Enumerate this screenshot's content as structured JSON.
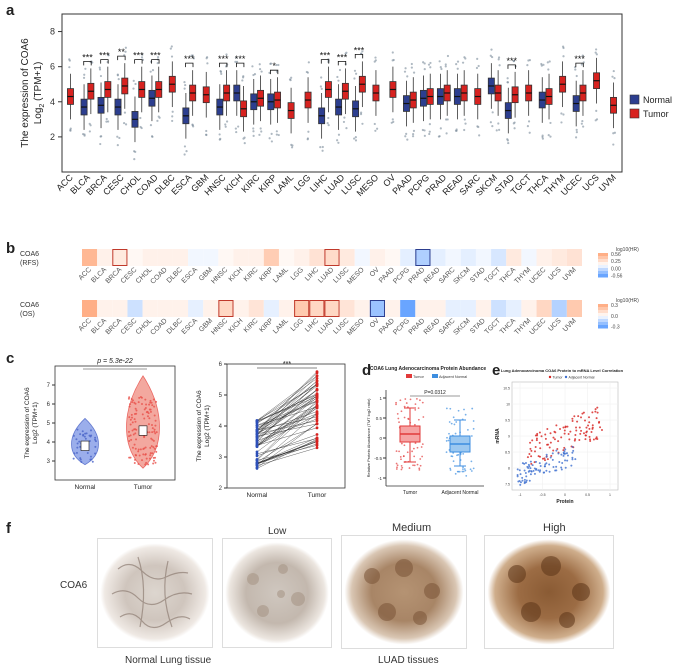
{
  "panels": {
    "a": "a",
    "b": "b",
    "c": "c",
    "d": "d",
    "e": "e",
    "f": "f"
  },
  "chart_data": [
    {
      "id": "a",
      "type": "boxplot",
      "ylabel_line1": "The expression of COA6",
      "ylabel_line2": "Log",
      "ylabel_sub": "2",
      "ylabel_line3": " (TPM+1)",
      "ylim": [
        0,
        9
      ],
      "yticks": [
        2,
        4,
        6,
        8
      ],
      "categories": [
        "ACC",
        "BLCA",
        "BRCA",
        "CESC",
        "CHOL",
        "COAD",
        "DLBC",
        "ESCA",
        "GBM",
        "HNSC",
        "KICH",
        "KIRC",
        "KIRP",
        "LAML",
        "LGG",
        "LIHC",
        "LUAD",
        "LUSC",
        "MESO",
        "OV",
        "PAAD",
        "PCPG",
        "PRAD",
        "READ",
        "SARC",
        "SKCM",
        "STAD",
        "TGCT",
        "THCA",
        "THYM",
        "UCEC",
        "UCS",
        "UVM"
      ],
      "legend": [
        {
          "name": "Normal",
          "color": "#2c3e8f"
        },
        {
          "name": "Tumor",
          "color": "#d7221f"
        }
      ],
      "normal_median": [
        null,
        3.7,
        3.8,
        3.7,
        3.0,
        4.2,
        null,
        3.2,
        null,
        3.7,
        4.5,
        4.0,
        4.0,
        null,
        null,
        3.2,
        3.7,
        3.6,
        null,
        null,
        3.9,
        4.2,
        4.3,
        4.3,
        null,
        4.9,
        3.5,
        null,
        4.1,
        null,
        3.9,
        null,
        null
      ],
      "tumor_median": [
        4.3,
        4.6,
        4.7,
        4.9,
        4.7,
        4.7,
        5.0,
        4.5,
        4.4,
        4.5,
        3.6,
        4.2,
        4.1,
        3.5,
        4.1,
        4.7,
        4.6,
        5.0,
        4.5,
        4.7,
        4.1,
        4.3,
        4.5,
        4.5,
        4.3,
        4.5,
        4.4,
        4.5,
        4.3,
        5.0,
        4.5,
        5.2,
        3.8
      ],
      "significance": [
        "",
        "***",
        "***",
        "**",
        "***",
        "***",
        "",
        "***",
        "",
        "***",
        "***",
        "",
        "*",
        "",
        "",
        "***",
        "***",
        "***",
        "",
        "",
        "",
        "",
        "",
        "",
        "",
        "",
        "***",
        "",
        "",
        "",
        "***",
        "",
        ""
      ]
    },
    {
      "id": "b",
      "type": "heatmap",
      "rows": [
        {
          "label_line1": "COA6",
          "label_line2": "(RFS)",
          "legend_title": "log10(HR)",
          "legend_ticks": [
            "0.56",
            "0.25",
            "0.00",
            "-0.56"
          ],
          "categories": [
            "ACC",
            "BLCA",
            "BRCA",
            "CESC",
            "CHOL",
            "COAD",
            "DLBC",
            "ESCA",
            "GBM",
            "HNSC",
            "KICH",
            "KIRC",
            "KIRP",
            "LAML",
            "LGG",
            "LIHC",
            "LUAD",
            "LUSC",
            "MESO",
            "OV",
            "PAAD",
            "PCPG",
            "PRAD",
            "READ",
            "SARC",
            "SKCM",
            "STAD",
            "TGCT",
            "THCA",
            "THYM",
            "UCEC",
            "UCS",
            "UVM"
          ],
          "values": [
            0.5,
            0.1,
            0.15,
            0.05,
            0.1,
            0.1,
            0.1,
            -0.05,
            -0.05,
            0.05,
            0.1,
            0.1,
            0.35,
            0.05,
            0.1,
            0.2,
            0.25,
            0.15,
            -0.05,
            0.1,
            0.05,
            -0.1,
            -0.3,
            -0.1,
            -0.05,
            -0.1,
            -0.05,
            -0.15,
            0.15,
            -0.05,
            0.1,
            0.15,
            0.2
          ],
          "highlighted": [
            "BRCA",
            "LUAD",
            "PRAD"
          ]
        },
        {
          "label_line1": "COA6",
          "label_line2": "(OS)",
          "legend_title": "log10(HR)",
          "legend_ticks": [
            "0.3",
            "0.0",
            "-0.3"
          ],
          "categories": [
            "ACC",
            "BLCA",
            "BRCA",
            "CESC",
            "CHOL",
            "COAD",
            "DLBC",
            "ESCA",
            "GBM",
            "HNSC",
            "KICH",
            "KIRC",
            "KIRP",
            "LAML",
            "LGG",
            "LIHC",
            "LUAD",
            "LUSC",
            "MESO",
            "OV",
            "PAAD",
            "PCPG",
            "PRAD",
            "READ",
            "SARC",
            "SKCM",
            "STAD",
            "TGCT",
            "THCA",
            "THYM",
            "UCEC",
            "UCS",
            "UVM"
          ],
          "values": [
            0.3,
            0.05,
            0.05,
            -0.1,
            0.05,
            0.05,
            0.05,
            -0.05,
            0.05,
            0.15,
            0.05,
            0.1,
            -0.05,
            0.05,
            0.2,
            0.15,
            0.15,
            0.1,
            0.05,
            -0.2,
            0.05,
            -0.3,
            0.05,
            0.05,
            -0.05,
            -0.05,
            0.05,
            -0.1,
            -0.05,
            0.05,
            0.15,
            -0.15,
            0.2
          ],
          "highlighted": [
            "HNSC",
            "LGG",
            "LIHC",
            "LUAD",
            "OV"
          ]
        }
      ]
    },
    {
      "id": "c1",
      "type": "violin",
      "pvalue": "p = 5.3e-22",
      "ylabel_line1": "The expression of COA6",
      "ylabel_line2": "Log2 (TPM+1)",
      "categories": [
        "Normal",
        "Tumor"
      ],
      "medians": [
        3.8,
        4.6
      ],
      "ylim": [
        2,
        8
      ],
      "yticks": [
        3,
        4,
        5,
        6,
        7
      ]
    },
    {
      "id": "c2",
      "type": "paired-line",
      "annotation": "***",
      "ylabel_line1": "The expression of COA6",
      "ylabel_line2": "Log2 (TPM+1)",
      "categories": [
        "Normal",
        "Tumor"
      ],
      "ylim": [
        2,
        6
      ],
      "yticks": [
        2,
        3,
        4,
        5,
        6
      ]
    },
    {
      "id": "d",
      "type": "boxplot",
      "title": "COA6 Lung Adenocarcinoma Protein Abundance",
      "legend": [
        {
          "name": "Tumor",
          "color": "#e23a3a"
        },
        {
          "name": "Adjacent Normal",
          "color": "#3d8ee0"
        }
      ],
      "ylabel": "Relative Protein Abundance (TMT log2 ratio)",
      "pvalue": "P=0.0312",
      "categories": [
        "Tumor",
        "Adjacent Normal"
      ],
      "medians": [
        0.1,
        -0.15
      ],
      "q1": [
        -0.1,
        -0.35
      ],
      "q3": [
        0.3,
        0.05
      ],
      "whisker_low": [
        -0.6,
        -0.7
      ],
      "whisker_high": [
        0.75,
        0.45
      ],
      "ylim": [
        -1.2,
        1.2
      ],
      "yticks": [
        "1",
        "0.5",
        "0",
        "-0.5",
        "-1"
      ]
    },
    {
      "id": "e",
      "type": "scatter",
      "title": "Lung Adenocarcinoma COA6 Protein to mRNA Level Correlation",
      "legend": [
        {
          "name": "Tumor",
          "color": "#d7221f"
        },
        {
          "name": "Adjacent Normal",
          "color": "#3d6fd0"
        }
      ],
      "xlabel": "Protein",
      "ylabel": "mRNA",
      "xticks": [
        "-1",
        "-0.5",
        "0",
        "0.5",
        "1"
      ],
      "yticks": [
        "10.5",
        "10",
        "9.5",
        "9",
        "8.5",
        "8",
        "7.5"
      ]
    }
  ],
  "panel_f": {
    "title_low": "Low",
    "title_medium": "Medium",
    "title_high": "High",
    "row_label": "COA6",
    "caption_normal": "Normal Lung tissue",
    "caption_luad": "LUAD tissues"
  }
}
